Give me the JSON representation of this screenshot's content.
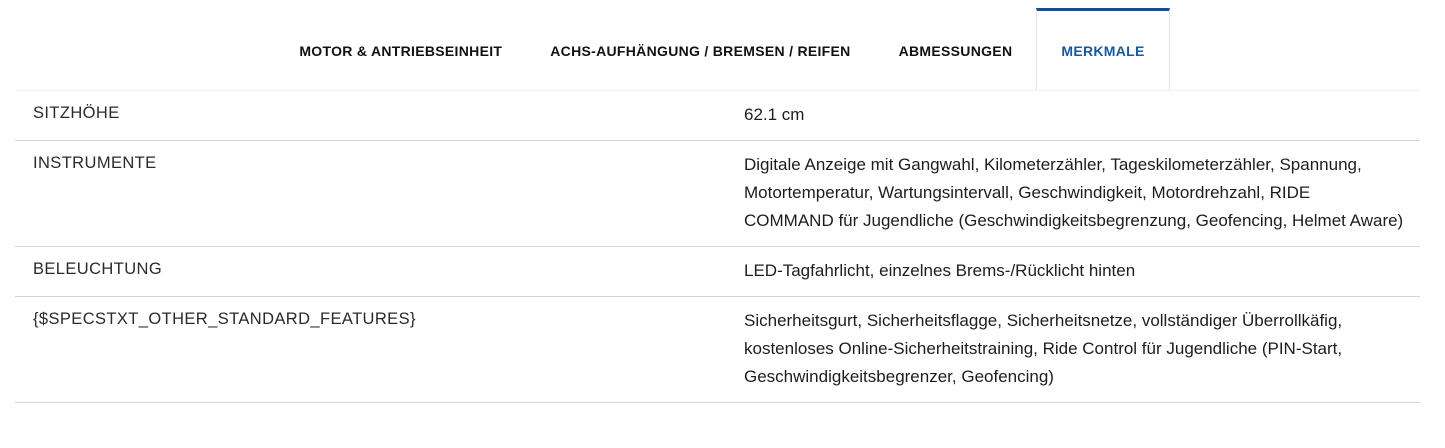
{
  "tabs": [
    {
      "label": "MOTOR & ANTRIEBSEINHEIT",
      "active": false
    },
    {
      "label": "ACHS-AUFHÄNGUNG / BREMSEN / REIFEN",
      "active": false
    },
    {
      "label": "ABMESSUNGEN",
      "active": false
    },
    {
      "label": "MERKMALE",
      "active": true
    }
  ],
  "colors": {
    "active_tab_text": "#1659a5",
    "active_tab_top_border": "#1a4e8a",
    "inactive_tab_text": "#111111",
    "row_divider": "#d5d5d5",
    "body_text": "#1d1d1d"
  },
  "spec_rows": [
    {
      "label": "SITZHÖHE",
      "value": "62.1 cm"
    },
    {
      "label": "INSTRUMENTE",
      "value": "Digitale Anzeige mit Gangwahl, Kilometerzähler, Tageskilometerzähler, Spannung, Motortemperatur, Wartungsintervall, Geschwindigkeit, Motordrehzahl, RIDE COMMAND für Jugendliche (Geschwindigkeitsbegrenzung, Geofencing, Helmet Aware)"
    },
    {
      "label": "BELEUCHTUNG",
      "value": "LED-Tagfahrlicht, einzelnes Brems-/Rücklicht hinten"
    },
    {
      "label": "{$SPECSTXT_OTHER_STANDARD_FEATURES}",
      "value": "Sicherheitsgurt, Sicherheitsflagge, Sicherheitsnetze, vollständiger Überrollkäfig, kostenloses Online-Sicherheitstraining, Ride Control für Jugendliche (PIN-Start, Geschwindigkeitsbegrenzer, Geofencing)"
    }
  ]
}
